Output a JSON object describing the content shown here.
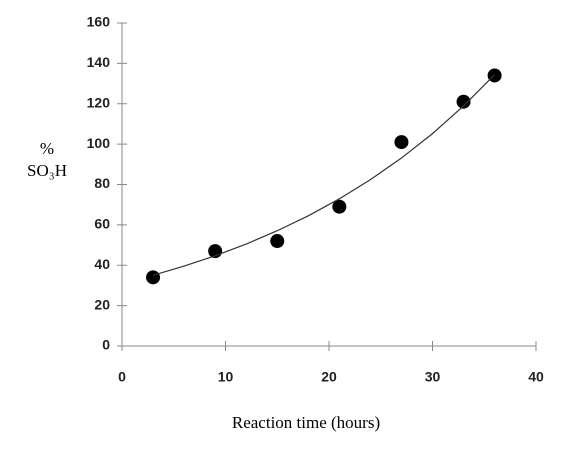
{
  "chart_data": {
    "type": "scatter",
    "xlabel": "Reaction time (hours)",
    "ylabel": [
      "%",
      "SO₃H"
    ],
    "xlim": [
      0,
      40
    ],
    "xticks": [
      0,
      10,
      20,
      30,
      40
    ],
    "ylim": [
      0,
      160
    ],
    "yticks": [
      0,
      20,
      40,
      60,
      80,
      100,
      120,
      140,
      160
    ],
    "series": [
      {
        "color": "#000000",
        "x": [
          3,
          9,
          15,
          21,
          27,
          33,
          36
        ],
        "values": [
          34,
          47,
          52,
          69,
          101,
          121,
          134
        ]
      },
      {
        "kind": "line",
        "color": "#333333",
        "x": [
          3,
          6,
          9,
          12,
          15,
          18,
          21,
          24,
          27,
          30,
          33,
          36
        ],
        "values": [
          35,
          39.6,
          44.7,
          50.5,
          57.1,
          64.5,
          72.9,
          82.4,
          93.1,
          105.2,
          118.9,
          134.4
        ]
      }
    ]
  }
}
